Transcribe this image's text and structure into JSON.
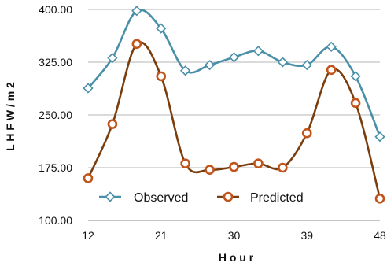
{
  "chart_data": {
    "type": "line",
    "title": "",
    "xlabel": "H o u r",
    "ylabel": "L H F W / m 2",
    "x_ticks": [
      "12",
      "21",
      "30",
      "39",
      "48"
    ],
    "y_ticks": [
      "100.00",
      "175.00",
      "250.00",
      "325.00",
      "400.00"
    ],
    "xlim": [
      12,
      48
    ],
    "ylim": [
      100,
      400
    ],
    "grid": "horizontal",
    "legend_position": "bottom-center",
    "x": [
      12,
      15,
      18,
      21,
      24,
      27,
      30,
      33,
      36,
      39,
      42,
      45,
      48
    ],
    "series": [
      {
        "name": "Observed",
        "color": "#4a8fa8",
        "marker": "diamond",
        "values": [
          288,
          331,
          398,
          373,
          313,
          321,
          332,
          341,
          325,
          321,
          347,
          305,
          219
        ]
      },
      {
        "name": "Predicted",
        "color": "#7a3d0e",
        "marker_color": "#c0541a",
        "marker": "circle",
        "values": [
          160,
          237,
          351,
          305,
          181,
          172,
          176,
          181,
          175,
          224,
          314,
          267,
          131
        ]
      }
    ]
  }
}
